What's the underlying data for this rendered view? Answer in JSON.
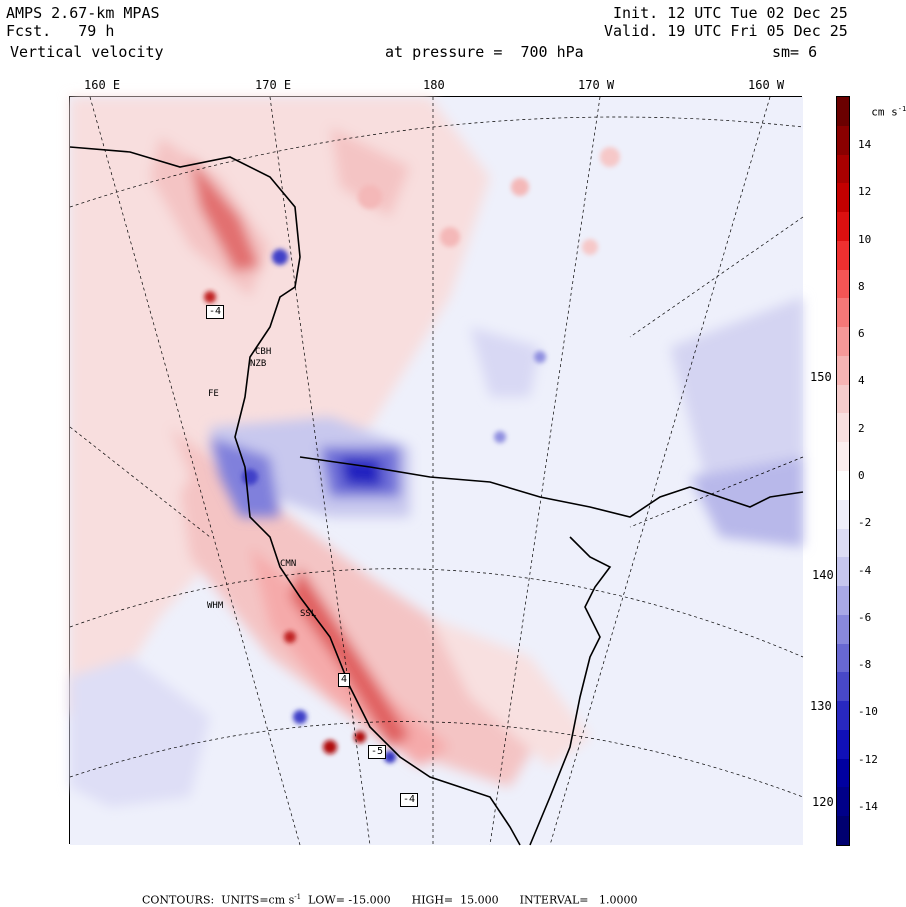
{
  "header": {
    "model": "AMPS 2.67-km MPAS",
    "forecast": "Fcst.   79 h",
    "field": "Vertical velocity",
    "init": "Init. 12 UTC Tue 02 Dec 25",
    "valid": "Valid. 19 UTC Fri 05 Dec 25",
    "pressure": "at pressure =  700 hPa",
    "smoothing": "sm= 6"
  },
  "top_ticks": [
    "160 E",
    "170 E",
    "180",
    "170 W",
    "160 W"
  ],
  "right_ticks": [
    "150 W",
    "140 W",
    "130 W",
    "120 W"
  ],
  "colorbar": {
    "units_label": "cm s",
    "units_exp": "-1",
    "labels": [
      "14",
      "12",
      "10",
      "8",
      "6",
      "4",
      "2",
      "0",
      "-2",
      "-4",
      "-6",
      "-8",
      "-10",
      "-12",
      "-14"
    ],
    "colors": [
      "#6b0000",
      "#8a0000",
      "#a80000",
      "#c40000",
      "#dc1010",
      "#ee3030",
      "#f45555",
      "#f57878",
      "#f69898",
      "#f6b4b4",
      "#f5cccc",
      "#f8e0e0",
      "#fbeeee",
      "#ffffff",
      "#eeeefa",
      "#dcdcf4",
      "#c6c6ee",
      "#a8a8e6",
      "#8888dc",
      "#6868d2",
      "#4848c8",
      "#2828c0",
      "#1010b8",
      "#0000a0",
      "#000088",
      "#000070"
    ]
  },
  "stations": [
    "CBH",
    "NZB",
    "FE",
    "CMN",
    "WHM",
    "SSL"
  ],
  "box_labels": [
    "-4",
    "4",
    "-5",
    "-4"
  ],
  "footer": {
    "text": "CONTOURS:  UNITS=cm s",
    "exp": "-1",
    "rest": "  LOW= -15.000      HIGH=  15.000      INTERVAL=   1.0000"
  }
}
